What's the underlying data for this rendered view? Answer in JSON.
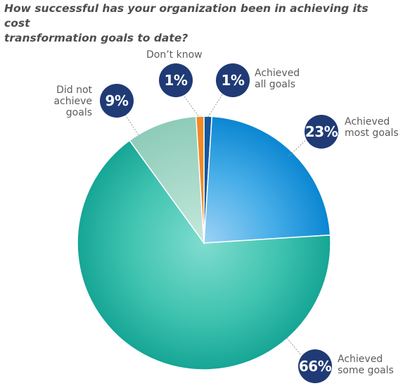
{
  "question": [
    "How successful has your organization been in achieving its cost",
    "transformation goals to date?"
  ],
  "colors": {
    "badge": "#1f3a75",
    "achieved_all": "#14589e",
    "achieved_most": "#1b8fd6",
    "achieved_some": "#2bb0a0",
    "did_not_achieve": "#96d2c2",
    "dont_know": "#f08a24"
  },
  "chart_data": {
    "type": "pie",
    "start_angle_deg": 0,
    "direction": "clockwise",
    "slices": [
      {
        "label_lines": [
          "Achieved",
          "all goals"
        ],
        "value": 1,
        "display": "1%"
      },
      {
        "label_lines": [
          "Achieved",
          "most goals"
        ],
        "value": 23,
        "display": "23%"
      },
      {
        "label_lines": [
          "Achieved",
          "some goals"
        ],
        "value": 66,
        "display": "66%"
      },
      {
        "label_lines": [
          "Did not",
          "achieve",
          "goals"
        ],
        "value": 9,
        "display": "9%"
      },
      {
        "label_lines": [
          "Don’t know"
        ],
        "value": 1,
        "display": "1%"
      }
    ]
  }
}
